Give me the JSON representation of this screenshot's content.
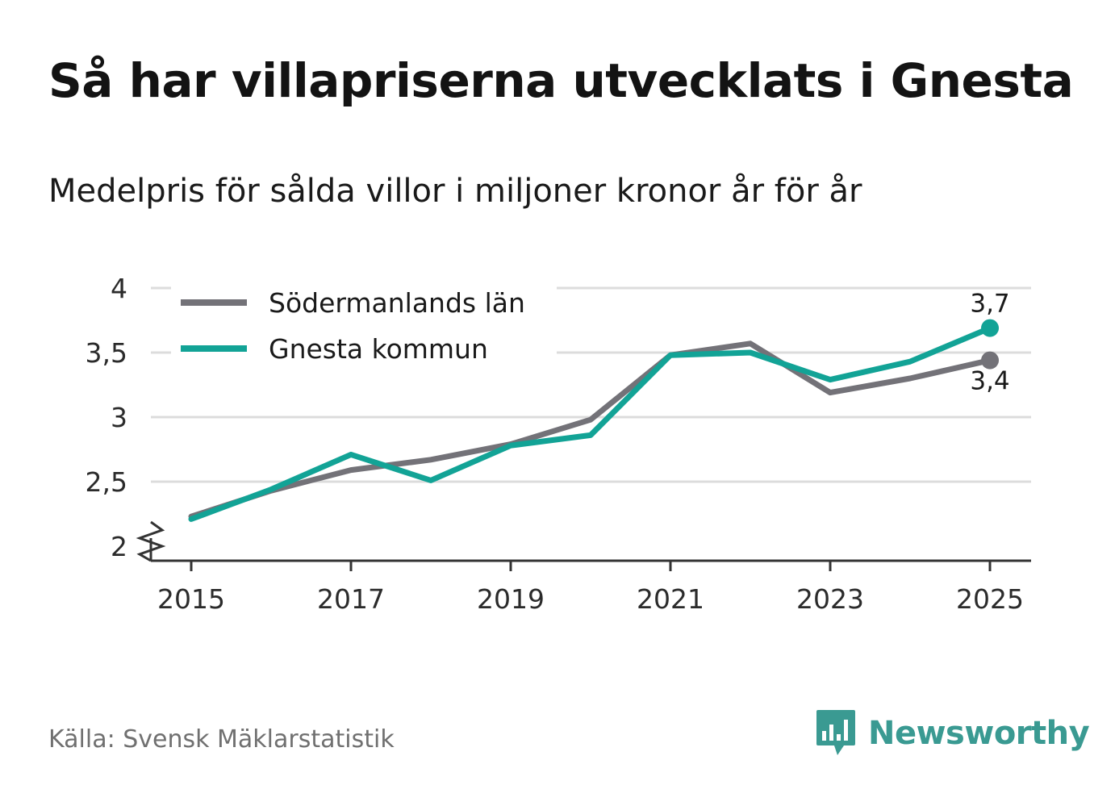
{
  "title": "Så har villapriserna utvecklats i Gnesta",
  "subtitle": "Medelpris för sålda villor i miljoner kronor år för år",
  "source": "Källa: Svensk Mäklarstatistik",
  "brand": "Newsworthy",
  "colors": {
    "lan": "#737278",
    "kommun": "#12a396",
    "grid": "#dcdcdc",
    "axis": "#333333",
    "brand": "#3a9a92"
  },
  "chart_data": {
    "type": "line",
    "title": "Så har villapriserna utvecklats i Gnesta",
    "subtitle": "Medelpris för sålda villor i miljoner kronor år för år",
    "xlabel": "",
    "ylabel": "",
    "x": [
      2015,
      2016,
      2017,
      2018,
      2019,
      2020,
      2021,
      2022,
      2023,
      2024,
      2025
    ],
    "xticks": [
      "2015",
      "2017",
      "2019",
      "2021",
      "2023",
      "2025"
    ],
    "yticks": [
      "2",
      "2,5",
      "3",
      "3,5",
      "4"
    ],
    "ylim": [
      2,
      4
    ],
    "xlim": [
      2014.5,
      2025.5
    ],
    "grid": true,
    "axis_break": true,
    "legend_position": "top-left",
    "series": [
      {
        "name": "Södermanlands län",
        "color": "#737278",
        "values": [
          2.23,
          2.43,
          2.59,
          2.67,
          2.79,
          2.98,
          3.48,
          3.57,
          3.19,
          3.3,
          3.44
        ],
        "end_label": "3,4"
      },
      {
        "name": "Gnesta kommun",
        "color": "#12a396",
        "values": [
          2.21,
          2.44,
          2.71,
          2.51,
          2.78,
          2.86,
          3.48,
          3.5,
          3.29,
          3.43,
          3.69
        ],
        "end_label": "3,7"
      }
    ]
  }
}
